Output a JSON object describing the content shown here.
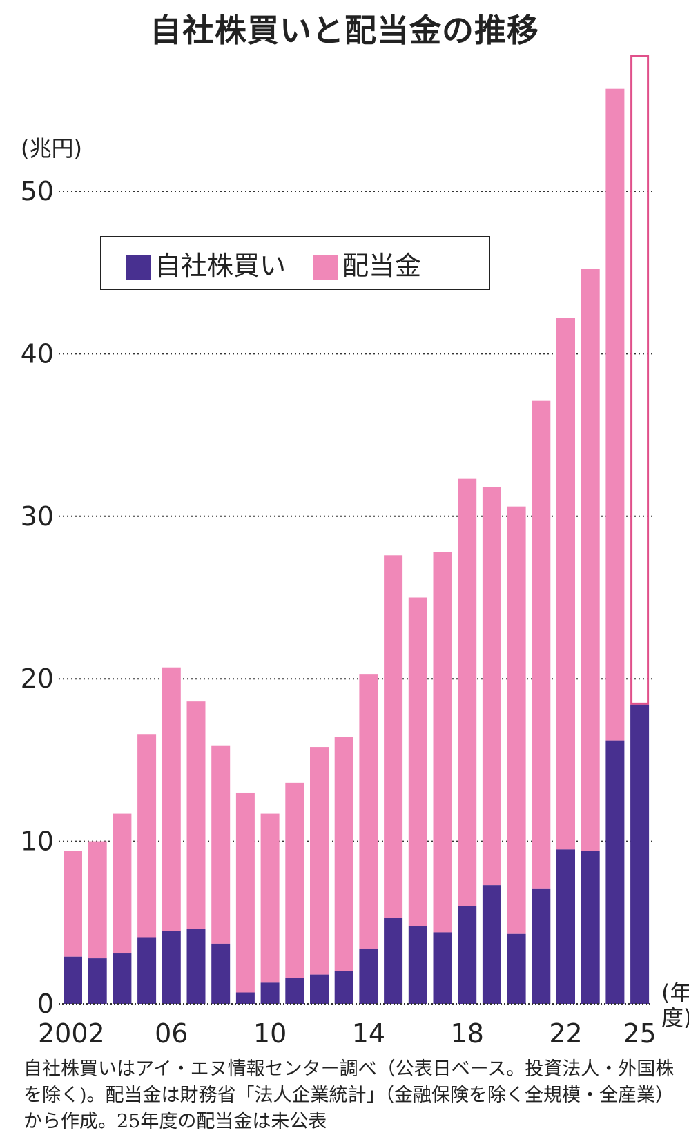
{
  "chart_data": {
    "type": "bar",
    "stacked": true,
    "title": "自社株買いと配当金の推移",
    "ylabel": "(兆円)",
    "xlabel": "(年度)",
    "ylim": [
      0,
      58
    ],
    "yticks": [
      0,
      10,
      20,
      30,
      40,
      50
    ],
    "grid": true,
    "legend_placement": "top-left",
    "categories": [
      "2002",
      "2003",
      "2004",
      "2005",
      "2006",
      "2007",
      "2008",
      "2009",
      "2010",
      "2011",
      "2012",
      "2013",
      "2014",
      "2015",
      "2016",
      "2017",
      "2018",
      "2019",
      "2020",
      "2021",
      "2022",
      "2023",
      "2024",
      "2025"
    ],
    "xtick_labels": [
      {
        "index": 0,
        "label": "2002"
      },
      {
        "index": 4,
        "label": "06"
      },
      {
        "index": 8,
        "label": "10"
      },
      {
        "index": 12,
        "label": "14"
      },
      {
        "index": 16,
        "label": "18"
      },
      {
        "index": 20,
        "label": "22"
      },
      {
        "index": 23,
        "label": "25"
      }
    ],
    "series": [
      {
        "name": "自社株買い",
        "color": "#483090",
        "values": [
          2.9,
          2.8,
          3.1,
          4.1,
          4.5,
          4.6,
          3.7,
          0.7,
          1.3,
          1.6,
          1.8,
          2.0,
          3.4,
          5.3,
          4.8,
          4.4,
          6.0,
          7.3,
          4.3,
          7.1,
          9.5,
          9.4,
          16.2,
          18.4
        ]
      },
      {
        "name": "配当金",
        "color": "#f088b8",
        "values": [
          6.5,
          7.2,
          8.6,
          12.5,
          16.2,
          14.0,
          12.2,
          12.3,
          10.4,
          12.0,
          14.0,
          14.4,
          16.9,
          22.3,
          20.2,
          23.4,
          26.3,
          24.5,
          26.3,
          30.0,
          32.7,
          35.8,
          40.1,
          null
        ]
      }
    ],
    "unpublished_outline": {
      "category": "2025",
      "total": 58.4,
      "color": "#e0508a"
    }
  },
  "note": "自社株買いはアイ・エヌ情報センター調べ（公表日ベース。投資法人・外国株を除く)。配当金は財務省「法人企業統計」（金融保険を除く全規模・全産業）から作成。25年度の配当金は未公表"
}
